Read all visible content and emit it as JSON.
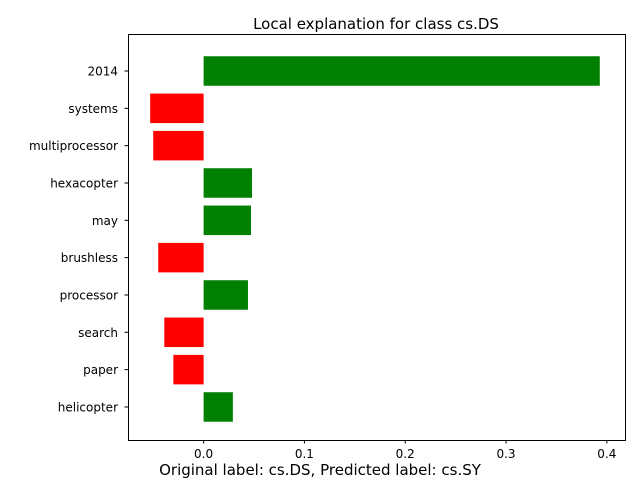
{
  "chart_data": {
    "type": "bar",
    "orientation": "horizontal",
    "title": "Local explanation for class cs.DS",
    "caption": "Original label: cs.DS, Predicted label: cs.SY",
    "categories": [
      "2014",
      "systems",
      "multiprocessor",
      "hexacopter",
      "may",
      "brushless",
      "processor",
      "search",
      "paper",
      "helicopter"
    ],
    "values": [
      0.393,
      -0.053,
      -0.05,
      0.048,
      0.047,
      -0.045,
      0.044,
      -0.039,
      -0.03,
      0.029
    ],
    "xlim": [
      -0.075,
      0.418
    ],
    "xticks": [
      "0.0",
      "0.1",
      "0.2",
      "0.3",
      "0.4"
    ],
    "grid": false,
    "colors": {
      "positive": "#008000",
      "negative": "#ff0000"
    }
  }
}
